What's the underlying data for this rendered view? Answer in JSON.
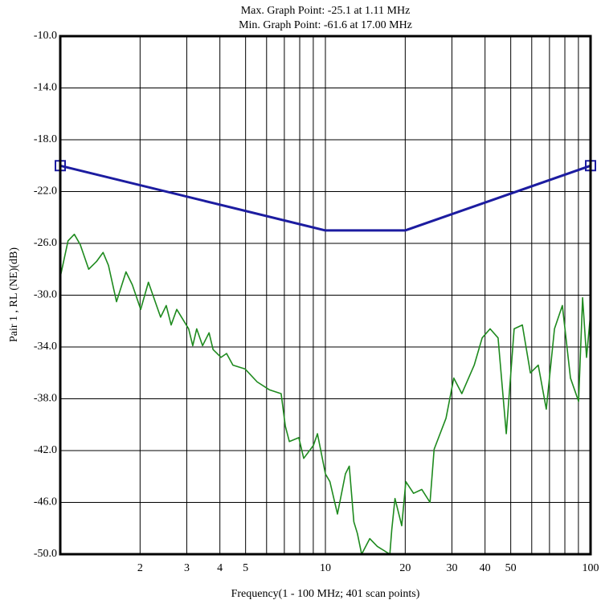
{
  "chart_data": {
    "type": "line",
    "title": "Max. Graph Point: -25.1 at 1.11 MHz",
    "subtitle": "Min. Graph Point: -61.6 at 17.00 MHz",
    "xlabel": "Frequency(1 - 100 MHz; 401 scan points)",
    "ylabel": "Pair 1 , RL (NE)(dB)",
    "xscale": "log",
    "grid": true,
    "xlim": [
      1,
      100
    ],
    "ylim": [
      -50,
      -10
    ],
    "xticks": [
      2,
      3,
      4,
      5,
      10,
      20,
      30,
      40,
      50,
      100
    ],
    "minor_xticks": [
      6,
      7,
      8,
      9,
      60,
      70,
      80,
      90
    ],
    "yticks": [
      {
        "value": -10,
        "label": "-10.0"
      },
      {
        "value": -14,
        "label": "-14.0"
      },
      {
        "value": -18,
        "label": "-18.0"
      },
      {
        "value": -22,
        "label": "-22.0"
      },
      {
        "value": -26,
        "label": "-26.0"
      },
      {
        "value": -30,
        "label": "-30.0"
      },
      {
        "value": -34,
        "label": "-34.0"
      },
      {
        "value": -38,
        "label": "-38.0"
      },
      {
        "value": -42,
        "label": "-42.0"
      },
      {
        "value": -46,
        "label": "-46.0"
      },
      {
        "value": -50,
        "label": "-50.0"
      }
    ],
    "series": [
      {
        "color": "#1c1ca0",
        "endpoint_markers": true,
        "x": [
          1,
          10,
          20,
          100
        ],
        "values": [
          -20,
          -25,
          -25,
          -20
        ]
      },
      {
        "color": "#1e8a1e",
        "x": [
          1.0,
          1.07,
          1.13,
          1.19,
          1.28,
          1.37,
          1.45,
          1.52,
          1.63,
          1.77,
          1.87,
          2.01,
          2.15,
          2.39,
          2.51,
          2.62,
          2.75,
          3.05,
          3.16,
          3.27,
          3.44,
          3.64,
          3.77,
          4.04,
          4.24,
          4.48,
          4.98,
          5.53,
          6.14,
          6.81,
          7.06,
          7.31,
          7.94,
          8.28,
          9.01,
          9.33,
          10,
          10.4,
          11.1,
          11.9,
          12.3,
          12.8,
          13.2,
          13.7,
          14.7,
          15.7,
          17.5,
          17.8,
          18.3,
          19.4,
          20.1,
          21.5,
          23.1,
          24.8,
          25.7,
          28.5,
          30.5,
          32.7,
          36.4,
          39.0,
          41.8,
          44.8,
          48.1,
          51.5,
          55.3,
          59.3,
          63.5,
          68.1,
          73.1,
          78.3,
          84.0,
          90.1,
          93.3,
          96.6,
          100
        ],
        "values": [
          -28.6,
          -25.8,
          -25.3,
          -26.1,
          -28.0,
          -27.4,
          -26.7,
          -27.7,
          -30.5,
          -28.2,
          -29.2,
          -31.1,
          -29.0,
          -31.7,
          -30.8,
          -32.3,
          -31.1,
          -32.6,
          -33.9,
          -32.6,
          -33.9,
          -32.9,
          -34.2,
          -34.8,
          -34.5,
          -35.4,
          -35.7,
          -36.7,
          -37.3,
          -37.6,
          -40.1,
          -41.3,
          -41.0,
          -42.6,
          -41.6,
          -40.7,
          -43.8,
          -44.4,
          -46.9,
          -43.8,
          -43.2,
          -47.5,
          -48.4,
          -50.0,
          -48.8,
          -49.4,
          -50.0,
          -48.1,
          -45.7,
          -47.8,
          -44.4,
          -45.3,
          -45.0,
          -46.0,
          -41.9,
          -39.5,
          -36.4,
          -37.6,
          -35.4,
          -33.3,
          -32.6,
          -33.3,
          -40.7,
          -32.6,
          -32.3,
          -36.0,
          -35.4,
          -38.8,
          -32.6,
          -30.8,
          -36.4,
          -38.2,
          -30.2,
          -34.8,
          -31.4
        ]
      }
    ]
  }
}
